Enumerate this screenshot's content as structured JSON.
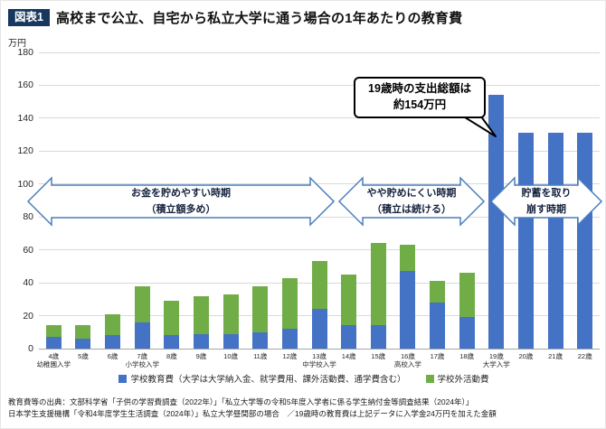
{
  "header": {
    "badge": "図表1",
    "title": "高校まで公立、自宅から私立大学に通う場合の1年あたりの教育費"
  },
  "chart_data": {
    "type": "bar",
    "stacked": true,
    "title": "高校まで公立、自宅から私立大学に通う場合の1年あたりの教育費",
    "y_unit": "万円",
    "ylim": [
      0,
      180
    ],
    "ytick_step": 20,
    "grid": true,
    "legend_position": "bottom",
    "categories": [
      "4歳",
      "5歳",
      "6歳",
      "7歳",
      "8歳",
      "9歳",
      "10歳",
      "11歳",
      "12歳",
      "13歳",
      "14歳",
      "15歳",
      "16歳",
      "17歳",
      "18歳",
      "19歳",
      "20歳",
      "21歳",
      "22歳"
    ],
    "sublabels": [
      "幼稚園入学",
      "",
      "",
      "小学校入学",
      "",
      "",
      "",
      "",
      "",
      "中学校入学",
      "",
      "",
      "高校入学",
      "",
      "",
      "大学入学",
      "",
      "",
      ""
    ],
    "series": [
      {
        "name": "学校教育費（大学は大学納入金、就学費用、課外活動費、通学費含む）",
        "color": "#4472c4",
        "values": [
          7,
          6,
          8,
          16,
          8,
          9,
          9,
          10,
          12,
          24,
          14,
          14,
          47,
          28,
          19,
          154,
          131,
          131,
          131
        ]
      },
      {
        "name": "学校外活動費",
        "color": "#70ad47",
        "values": [
          7,
          8,
          13,
          22,
          21,
          23,
          24,
          28,
          31,
          29,
          31,
          50,
          16,
          13,
          27,
          0,
          0,
          0,
          0
        ]
      }
    ],
    "periods": [
      {
        "line1": "お金を貯めやすい時期",
        "line2": "（積立額多め）"
      },
      {
        "line1": "やや貯めにくい時期",
        "line2": "（積立は続ける）"
      },
      {
        "line1": "貯蓄を取り",
        "line2": "崩す時期"
      }
    ],
    "callout": {
      "line1": "19歳時の支出総額は",
      "line2": "約154万円",
      "target": "19歳"
    }
  },
  "footnote": {
    "line1": "教育費等の出典：文部科学省「子供の学習費調査（2022年）」「私立大学等の令和5年度入学者に係る学生納付金等調査結果（2024年）」",
    "line2": "日本学生支援機構「令和4年度学生生活調査（2024年）」私立大学昼間部の場合　／19歳時の教育費は上記データに入学金24万円を加えた金額"
  }
}
